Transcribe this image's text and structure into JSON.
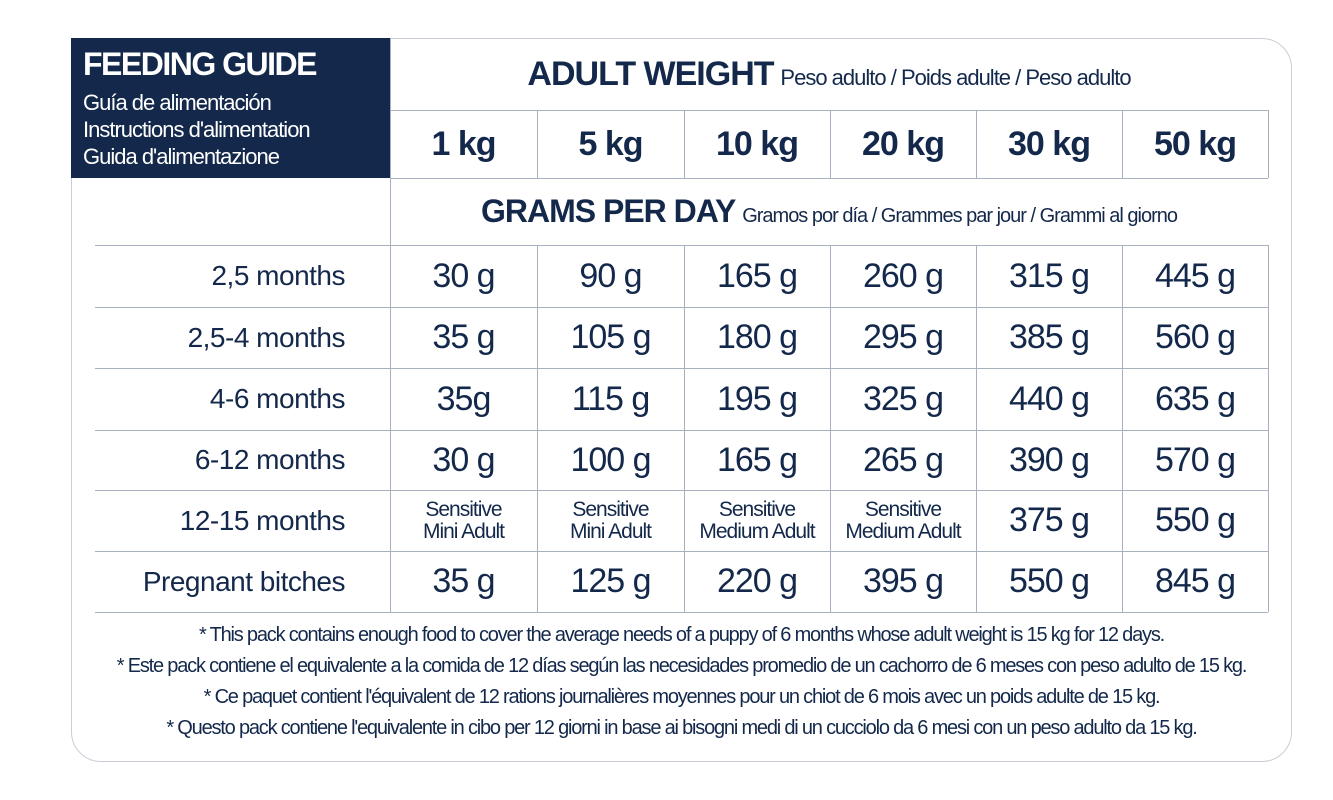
{
  "title": {
    "main": "FEEDING GUIDE",
    "subtitles": [
      "Guía de alimentación",
      "Instructions d'alimentation",
      "Guida d'alimentazione"
    ]
  },
  "adult_weight": {
    "label": "ADULT WEIGHT",
    "translations": "Peso adulto / Poids adulte / Peso adulto"
  },
  "weights": [
    "1 kg",
    "5 kg",
    "10 kg",
    "20 kg",
    "30 kg",
    "50 kg"
  ],
  "grams_per_day": {
    "label": "GRAMS PER DAY",
    "translations": "Gramos por día / Grammes par jour / Grammi al giorno"
  },
  "rows": [
    {
      "label": "2,5 months",
      "values": [
        "30 g",
        "90 g",
        "165 g",
        "260 g",
        "315 g",
        "445 g"
      ]
    },
    {
      "label": "2,5-4 months",
      "values": [
        "35 g",
        "105 g",
        "180 g",
        "295 g",
        "385 g",
        "560 g"
      ]
    },
    {
      "label": "4-6 months",
      "values": [
        "35g",
        "115 g",
        "195 g",
        "325 g",
        "440 g",
        "635 g"
      ]
    },
    {
      "label": "6-12 months",
      "values": [
        "30 g",
        "100 g",
        "165 g",
        "265 g",
        "390 g",
        "570 g"
      ]
    },
    {
      "label": "12-15 months",
      "values": [
        "Sensitive\nMini Adult",
        "Sensitive\nMini Adult",
        "Sensitive\nMedium Adult",
        "Sensitive\nMedium Adult",
        "375 g",
        "550 g"
      ]
    },
    {
      "label": "Pregnant bitches",
      "values": [
        "35 g",
        "125 g",
        "220 g",
        "395 g",
        "550 g",
        "845 g"
      ]
    }
  ],
  "notes": [
    "* This pack contains enough food to cover the average needs of a puppy of 6 months whose adult weight is 15 kg for 12 days.",
    "* Este pack contiene el equivalente a la comida de 12 días según las necesidades promedio de un cachorro de 6 meses con peso adulto de 15 kg.",
    "* Ce paquet contient l'équivalent de 12 rations journalières moyennes pour un chiot de 6 mois avec un poids adulte de 15 kg.",
    "* Questo pack contiene l'equivalente in cibo per 12 giorni in base ai bisogni medi di un cucciolo da 6 mesi con un peso adulto da 15 kg."
  ],
  "colors": {
    "navy": "#13284a",
    "grid": "#a9b1c0"
  }
}
